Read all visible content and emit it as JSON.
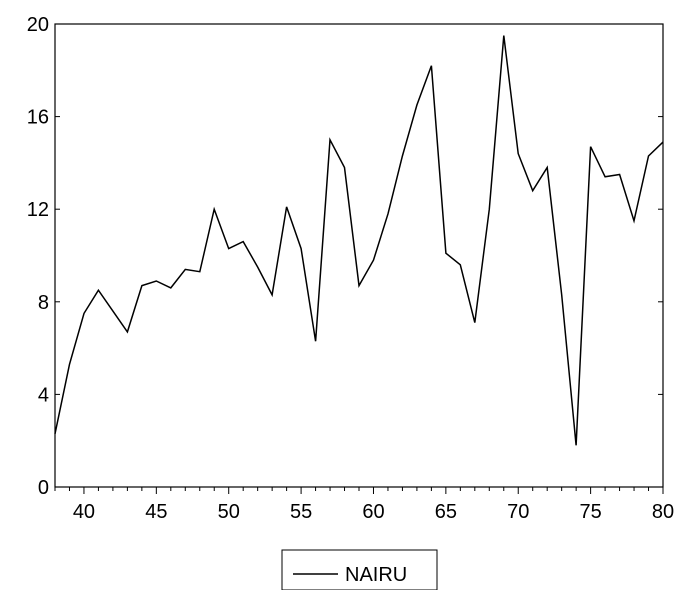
{
  "chart_data": {
    "type": "line",
    "title": "",
    "xlabel": "",
    "ylabel": "",
    "xlim": [
      38,
      80
    ],
    "ylim": [
      0,
      20
    ],
    "x_ticks": [
      "40",
      "45",
      "50",
      "55",
      "60",
      "65",
      "70",
      "75",
      "80"
    ],
    "y_ticks": [
      "0",
      "4",
      "8",
      "12",
      "16",
      "20"
    ],
    "grid": false,
    "legend_position": "bottom-center",
    "series": [
      {
        "name": "NAIRU",
        "color": "#000000",
        "x": [
          38,
          39,
          40,
          41,
          42,
          43,
          44,
          45,
          46,
          47,
          48,
          49,
          50,
          51,
          52,
          53,
          54,
          55,
          56,
          57,
          58,
          59,
          60,
          61,
          62,
          63,
          64,
          65,
          66,
          67,
          68,
          69,
          70,
          71,
          72,
          73,
          74,
          75,
          76,
          77,
          78,
          79,
          80
        ],
        "values": [
          2.3,
          5.3,
          7.5,
          8.5,
          7.6,
          6.7,
          8.7,
          8.9,
          8.6,
          9.4,
          9.3,
          12.0,
          10.3,
          10.6,
          9.5,
          8.3,
          12.1,
          10.3,
          6.3,
          15.0,
          13.8,
          8.7,
          9.8,
          11.8,
          14.3,
          16.5,
          18.2,
          10.1,
          9.6,
          7.1,
          12.0,
          19.5,
          14.4,
          12.8,
          13.8,
          8.3,
          1.8,
          14.7,
          13.4,
          13.5,
          11.5,
          14.3,
          14.9
        ]
      }
    ]
  }
}
